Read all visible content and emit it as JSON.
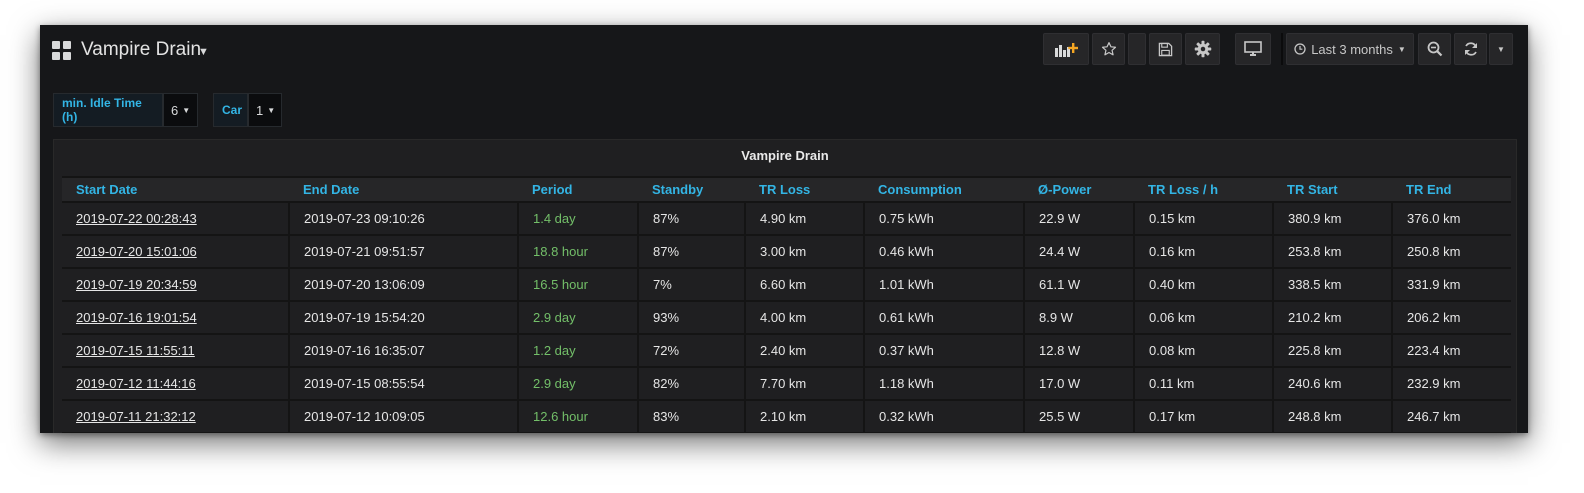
{
  "dashboard": {
    "title": "Vampire Drain",
    "time_range_label": "Last 3 months"
  },
  "icons": {
    "grid": "dashboard-grid-icon",
    "add_panel": "add-panel-icon",
    "star": "star-icon",
    "save": "save-icon",
    "settings": "gear-icon",
    "tv_mode": "monitor-icon",
    "clock": "clock-icon",
    "zoom_out": "zoom-out-icon",
    "refresh": "refresh-icon",
    "refresh_dropdown": "chevron-down-icon"
  },
  "colors": {
    "accent": "#33b5e5",
    "period_green": "#73bf69",
    "background": "#161719",
    "panel": "#1f1f21",
    "add_panel_orange": "#f5a623"
  },
  "variables": [
    {
      "label": "min. Idle Time (h)",
      "value": "6"
    },
    {
      "label": "Car",
      "value": "1"
    }
  ],
  "panel": {
    "title": "Vampire Drain",
    "columns": [
      "Start Date",
      "End Date",
      "Period",
      "Standby",
      "TR Loss",
      "Consumption",
      "Ø-Power",
      "TR Loss / h",
      "TR Start",
      "TR End"
    ],
    "rows": [
      [
        "2019-07-22 00:28:43",
        "2019-07-23 09:10:26",
        "1.4 day",
        "87%",
        "4.90 km",
        "0.75 kWh",
        "22.9 W",
        "0.15 km",
        "380.9 km",
        "376.0 km"
      ],
      [
        "2019-07-20 15:01:06",
        "2019-07-21 09:51:57",
        "18.8 hour",
        "87%",
        "3.00 km",
        "0.46 kWh",
        "24.4 W",
        "0.16 km",
        "253.8 km",
        "250.8 km"
      ],
      [
        "2019-07-19 20:34:59",
        "2019-07-20 13:06:09",
        "16.5 hour",
        "7%",
        "6.60 km",
        "1.01 kWh",
        "61.1 W",
        "0.40 km",
        "338.5 km",
        "331.9 km"
      ],
      [
        "2019-07-16 19:01:54",
        "2019-07-19 15:54:20",
        "2.9 day",
        "93%",
        "4.00 km",
        "0.61 kWh",
        "8.9 W",
        "0.06 km",
        "210.2 km",
        "206.2 km"
      ],
      [
        "2019-07-15 11:55:11",
        "2019-07-16 16:35:07",
        "1.2 day",
        "72%",
        "2.40 km",
        "0.37 kWh",
        "12.8 W",
        "0.08 km",
        "225.8 km",
        "223.4 km"
      ],
      [
        "2019-07-12 11:44:16",
        "2019-07-15 08:55:54",
        "2.9 day",
        "82%",
        "7.70 km",
        "1.18 kWh",
        "17.0 W",
        "0.11 km",
        "240.6 km",
        "232.9 km"
      ],
      [
        "2019-07-11 21:32:12",
        "2019-07-12 10:09:05",
        "12.6 hour",
        "83%",
        "2.10 km",
        "0.32 kWh",
        "25.5 W",
        "0.17 km",
        "248.8 km",
        "246.7 km"
      ]
    ]
  }
}
